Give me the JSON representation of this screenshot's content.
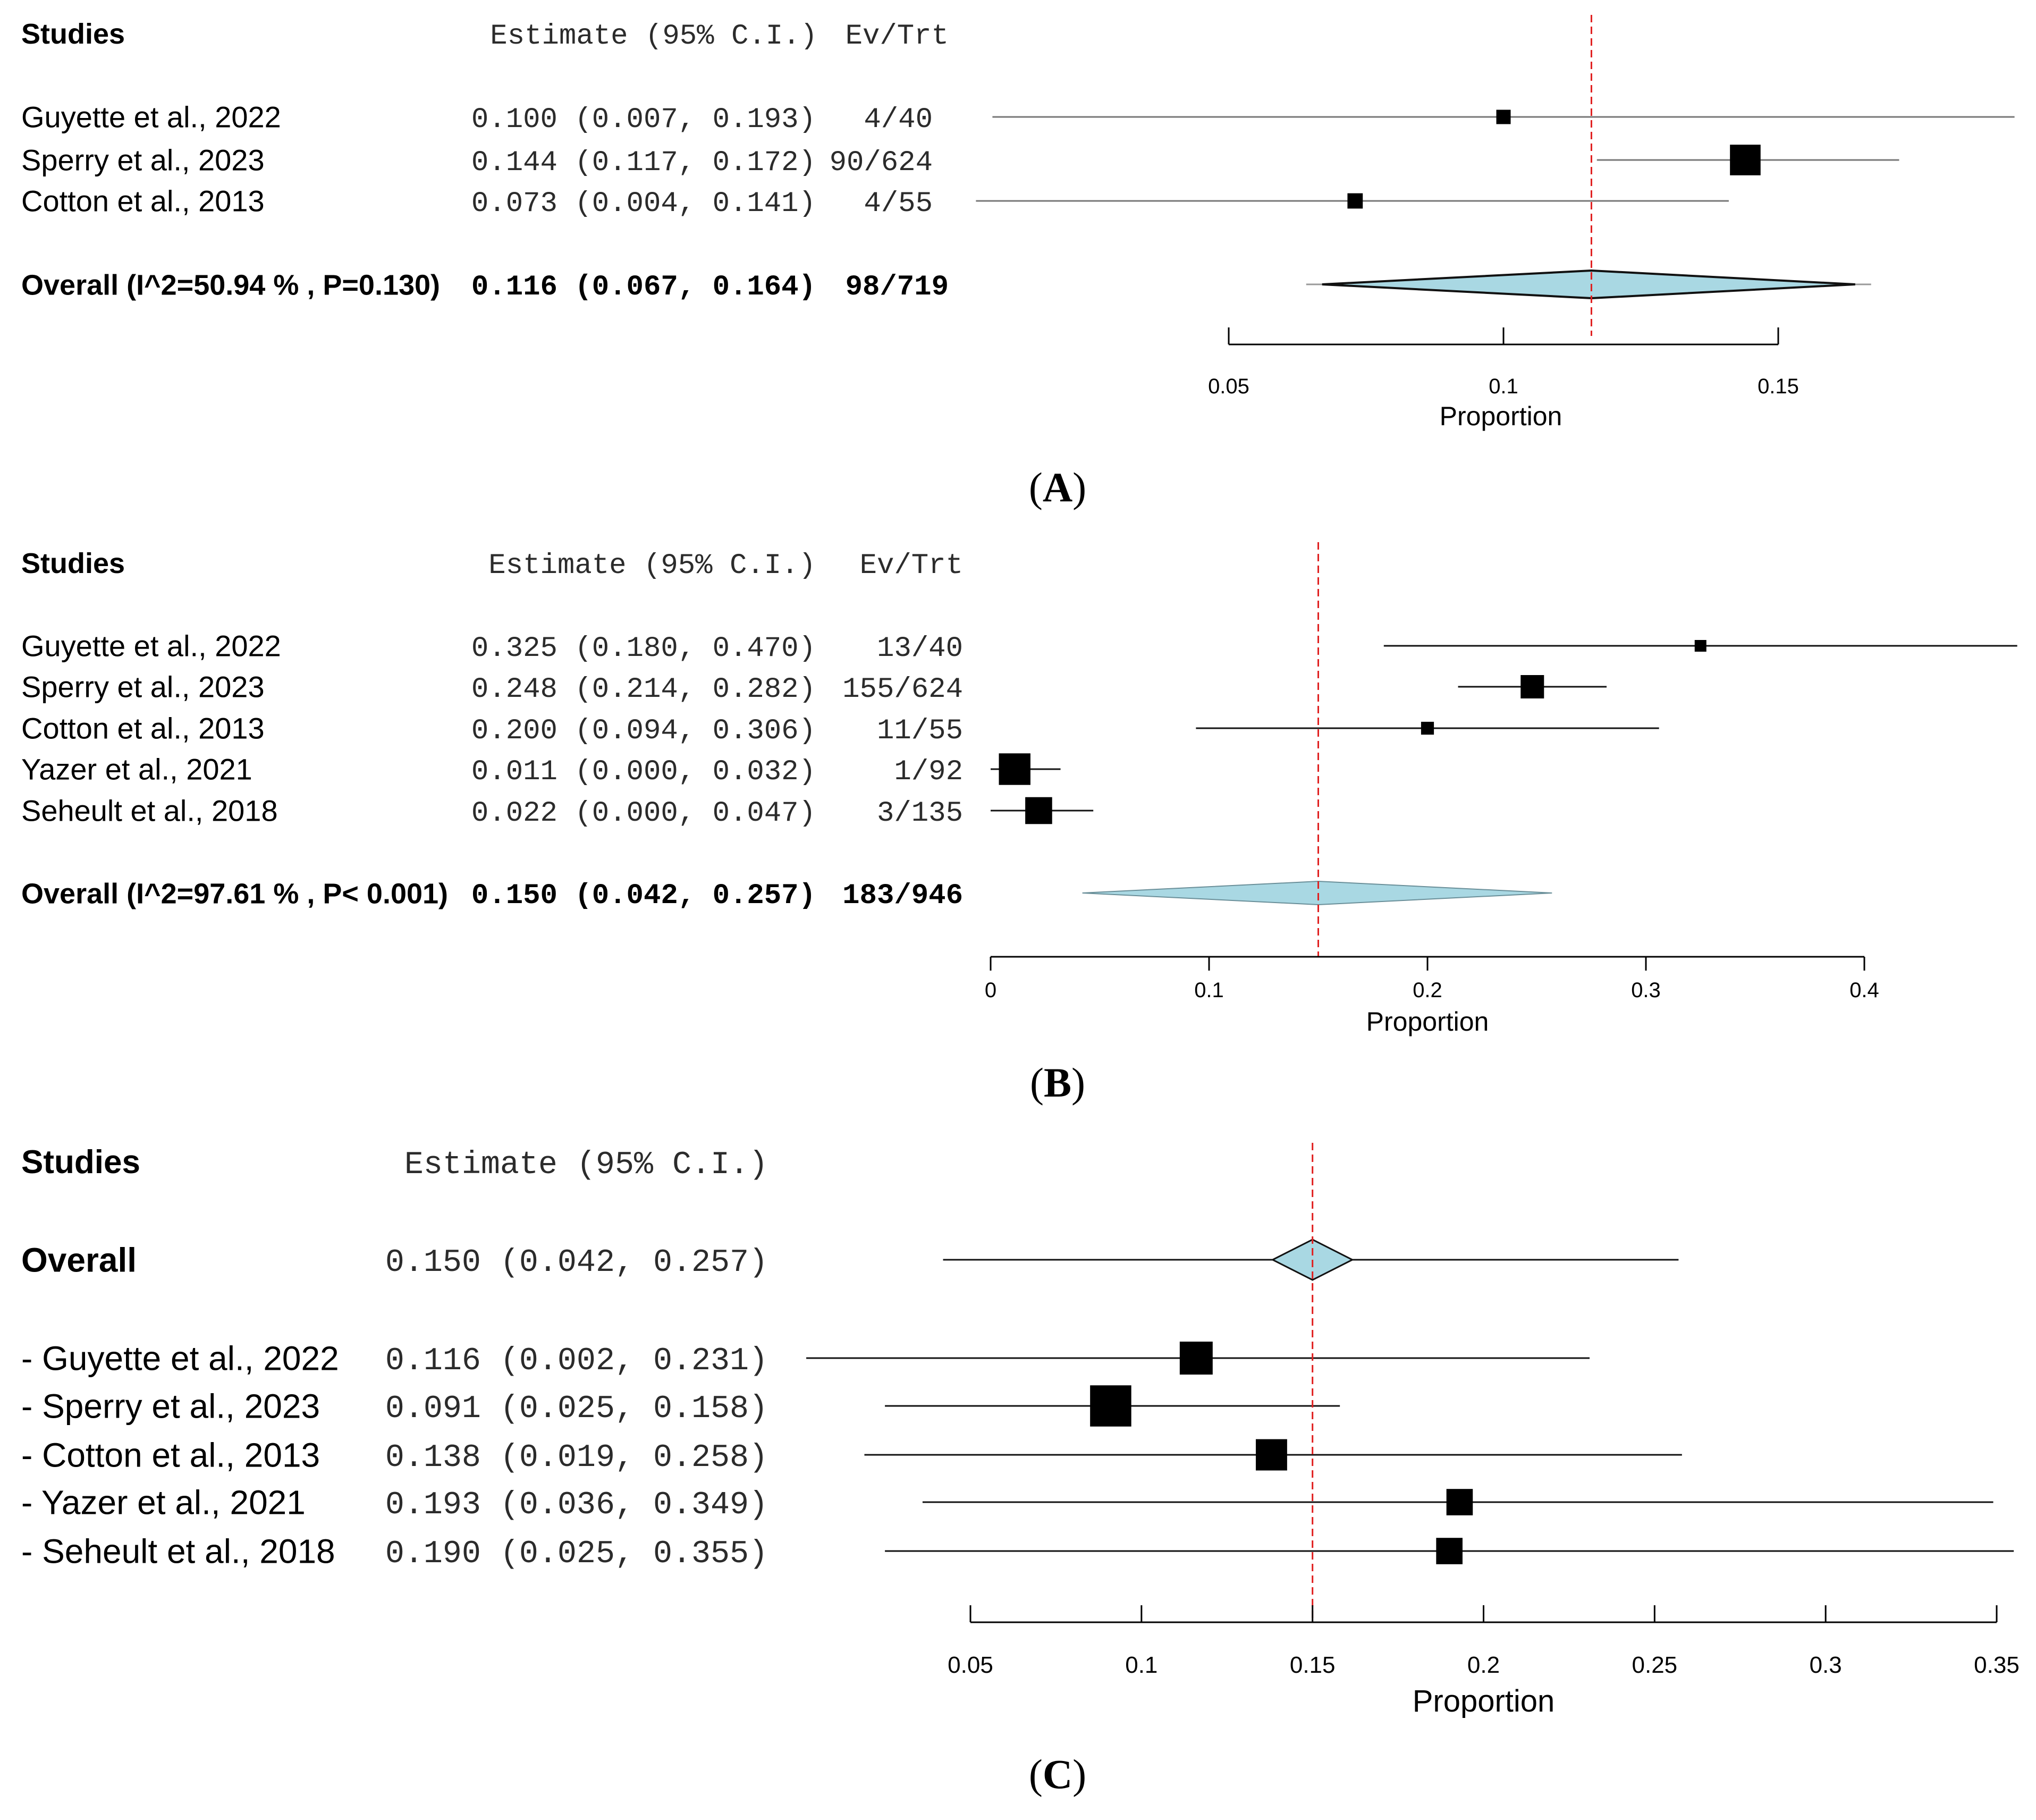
{
  "chart_data": [
    {
      "type": "forest",
      "panel": "A",
      "header": {
        "studies": "Studies",
        "estimate": "Estimate (95% C.I.)",
        "ev_trt": "Ev/Trt"
      },
      "xlabel": "Proportion",
      "xlim": [
        0.05,
        0.15
      ],
      "ticks": [
        0.05,
        0.1,
        0.15
      ],
      "tick_labels": [
        "0.05",
        "0.1",
        "0.15"
      ],
      "reference_line": 0.116,
      "studies": [
        {
          "name": "Guyette et al., 2022",
          "est": 0.1,
          "lo": 0.007,
          "hi": 0.193,
          "ci_text": "0.100 (0.007, 0.193)",
          "evtrt": "4/40",
          "weight": 0.75
        },
        {
          "name": "Sperry et al., 2023",
          "est": 0.144,
          "lo": 0.117,
          "hi": 0.172,
          "ci_text": "0.144 (0.117, 0.172)",
          "evtrt": "90/624",
          "weight": 1.6
        },
        {
          "name": "Cotton et al., 2013",
          "est": 0.073,
          "lo": 0.004,
          "hi": 0.141,
          "ci_text": "0.073 (0.004, 0.141)",
          "evtrt": "4/55",
          "weight": 0.8
        }
      ],
      "overall": {
        "name": "Overall (I^2=50.94 % , P=0.130)",
        "est": 0.116,
        "lo": 0.067,
        "hi": 0.164,
        "ci_text": "0.116 (0.067, 0.164)",
        "evtrt": "98/719"
      }
    },
    {
      "type": "forest",
      "panel": "B",
      "header": {
        "studies": "Studies",
        "estimate": "Estimate (95% C.I.)",
        "ev_trt": "Ev/Trt"
      },
      "xlabel": "Proportion",
      "xlim": [
        0,
        0.4
      ],
      "ticks": [
        0,
        0.1,
        0.2,
        0.3,
        0.4
      ],
      "tick_labels": [
        "0",
        "0.1",
        "0.2",
        "0.3",
        "0.4"
      ],
      "reference_line": 0.15,
      "studies": [
        {
          "name": "Guyette et al., 2022",
          "est": 0.325,
          "lo": 0.18,
          "hi": 0.47,
          "ci_text": "0.325 (0.180, 0.470)",
          "evtrt": "13/40",
          "weight": 0.5
        },
        {
          "name": "Sperry et al., 2023",
          "est": 0.248,
          "lo": 0.214,
          "hi": 0.282,
          "ci_text": "0.248 (0.214, 0.282)",
          "evtrt": "155/624",
          "weight": 1.0
        },
        {
          "name": "Cotton et al., 2013",
          "est": 0.2,
          "lo": 0.094,
          "hi": 0.306,
          "ci_text": "0.200 (0.094, 0.306)",
          "evtrt": "11/55",
          "weight": 0.55
        },
        {
          "name": "Yazer et al., 2021",
          "est": 0.011,
          "lo": 0.0,
          "hi": 0.032,
          "ci_text": "0.011 (0.000, 0.032)",
          "evtrt": "1/92",
          "weight": 1.35
        },
        {
          "name": "Seheult et al., 2018",
          "est": 0.022,
          "lo": 0.0,
          "hi": 0.047,
          "ci_text": "0.022 (0.000, 0.047)",
          "evtrt": "3/135",
          "weight": 1.15
        }
      ],
      "overall": {
        "name": "Overall (I^2=97.61 % , P< 0.001)",
        "est": 0.15,
        "lo": 0.042,
        "hi": 0.257,
        "ci_text": "0.150 (0.042, 0.257)",
        "evtrt": "183/946"
      }
    },
    {
      "type": "forest",
      "panel": "C",
      "header": {
        "studies": "Studies",
        "estimate": "Estimate (95% C.I.)"
      },
      "xlabel": "Proportion",
      "xlim": [
        0.05,
        0.35
      ],
      "ticks": [
        0.05,
        0.1,
        0.15,
        0.2,
        0.25,
        0.3,
        0.35
      ],
      "tick_labels": [
        "0.05",
        "0.1",
        "0.15",
        "0.2",
        "0.25",
        "0.3",
        "0.35"
      ],
      "reference_line": 0.15,
      "overall": {
        "name": "Overall",
        "est": 0.15,
        "lo": 0.042,
        "hi": 0.257,
        "ci_text": "0.150 (0.042, 0.257)"
      },
      "studies": [
        {
          "name": "- Guyette et al., 2022",
          "est": 0.116,
          "lo": 0.002,
          "hi": 0.231,
          "ci_text": "0.116 (0.002, 0.231)",
          "weight": 1.0
        },
        {
          "name": "- Sperry et al., 2023",
          "est": 0.091,
          "lo": 0.025,
          "hi": 0.158,
          "ci_text": "0.091 (0.025, 0.158)",
          "weight": 1.25
        },
        {
          "name": "- Cotton et al., 2013",
          "est": 0.138,
          "lo": 0.019,
          "hi": 0.258,
          "ci_text": "0.138 (0.019, 0.258)",
          "weight": 0.95
        },
        {
          "name": "- Yazer et al., 2021",
          "est": 0.193,
          "lo": 0.036,
          "hi": 0.349,
          "ci_text": "0.193 (0.036, 0.349)",
          "weight": 0.8
        },
        {
          "name": "- Seheult et al., 2018",
          "est": 0.19,
          "lo": 0.025,
          "hi": 0.355,
          "ci_text": "0.190 (0.025, 0.355)",
          "weight": 0.8
        }
      ]
    }
  ],
  "captions": [
    {
      "open": "(",
      "letter": "A",
      "close": ")"
    },
    {
      "open": "(",
      "letter": "B",
      "close": ")"
    },
    {
      "open": "(",
      "letter": "C",
      "close": ")"
    }
  ]
}
